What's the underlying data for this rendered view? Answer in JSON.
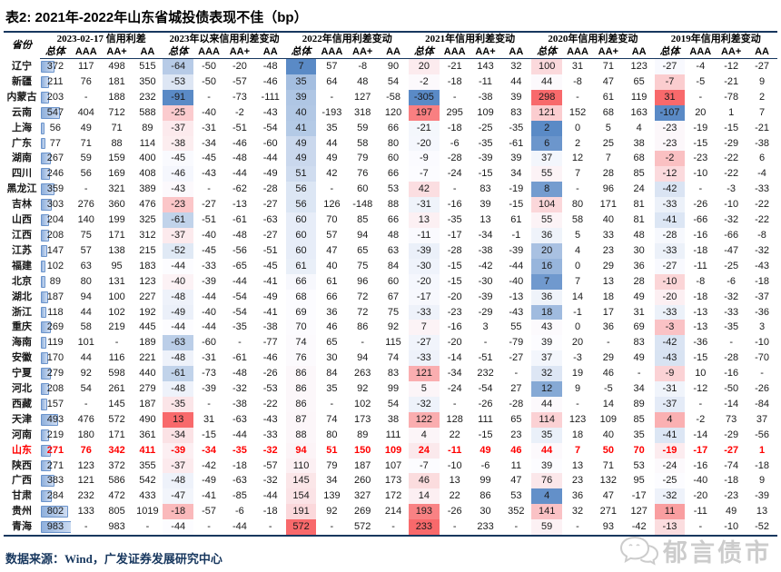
{
  "title": "表2:  2021年-2022年山东省城投债表现不佳（bp）",
  "source": "数据来源：Wind，广发证券发展研究中心",
  "watermark": {
    "text": "郁言债市",
    "icon": "chat-bubbles-logo"
  },
  "colors": {
    "accent_line": "#17375E",
    "highlight_text": "#FF0000",
    "bar_border": "#6A93CB",
    "bar_fill": "#8FB0DC",
    "scale_min_blue": "#5A8AC6",
    "scale_mid_white": "#FCFCFF",
    "scale_max_red": "#F8696B"
  },
  "table": {
    "province_header": "省份",
    "sub_headers": [
      "总体",
      "AAA",
      "AA+",
      "AA"
    ],
    "groups": [
      "2023-02-17 信用利差",
      "2023年以来信用利差变动",
      "2022年信用利差变动",
      "2021年信用利差变动",
      "2020年信用利差变动",
      "2019年信用利差变动"
    ],
    "databar_column": 0,
    "colorscale_columns": [
      4,
      8,
      12,
      16,
      20
    ],
    "rows": [
      {
        "province": "辽宁",
        "hl": false,
        "values": [
          372,
          117,
          498,
          515,
          -64,
          -50,
          -20,
          -48,
          7,
          57,
          -8,
          90,
          20,
          -21,
          143,
          32,
          100,
          31,
          71,
          123,
          -27,
          -4,
          -12,
          -27
        ]
      },
      {
        "province": "新疆",
        "hl": false,
        "values": [
          211,
          76,
          181,
          350,
          -53,
          -50,
          -57,
          -46,
          35,
          64,
          48,
          54,
          -2,
          -18,
          -11,
          44,
          44,
          -8,
          47,
          65,
          -7,
          -5,
          -21,
          9
        ]
      },
      {
        "province": "内蒙古",
        "hl": false,
        "values": [
          203,
          "-",
          188,
          232,
          -91,
          "-",
          -73,
          -111,
          39,
          "-",
          127,
          -58,
          -305,
          "-",
          -38,
          39,
          298,
          "-",
          61,
          119,
          31,
          "-",
          -78,
          2
        ]
      },
      {
        "province": "云南",
        "hl": false,
        "values": [
          547,
          404,
          712,
          588,
          -25,
          -40,
          -2,
          -43,
          40,
          -193,
          318,
          120,
          197,
          295,
          109,
          83,
          121,
          152,
          68,
          163,
          -107,
          20,
          1,
          7
        ]
      },
      {
        "province": "上海",
        "hl": false,
        "values": [
          56,
          49,
          71,
          89,
          -37,
          -31,
          -51,
          -54,
          41,
          35,
          59,
          66,
          -21,
          -18,
          -25,
          -35,
          2,
          0,
          5,
          4,
          -23,
          -19,
          -15,
          -21
        ]
      },
      {
        "province": "广东",
        "hl": false,
        "values": [
          77,
          71,
          88,
          114,
          -38,
          -34,
          -46,
          -60,
          49,
          44,
          58,
          80,
          -20,
          -6,
          -35,
          -61,
          6,
          2,
          25,
          38,
          -23,
          -15,
          -29,
          -38
        ]
      },
      {
        "province": "湖南",
        "hl": false,
        "values": [
          267,
          59,
          159,
          400,
          -45,
          -45,
          -48,
          -44,
          49,
          49,
          79,
          60,
          -9,
          -28,
          -39,
          39,
          37,
          12,
          7,
          68,
          -2,
          -23,
          -22,
          6
        ]
      },
      {
        "province": "四川",
        "hl": false,
        "values": [
          246,
          56,
          169,
          408,
          -46,
          -43,
          -44,
          -49,
          51,
          42,
          76,
          66,
          -7,
          -24,
          -15,
          34,
          55,
          7,
          28,
          85,
          -12,
          -10,
          -22,
          -4
        ]
      },
      {
        "province": "黑龙江",
        "hl": false,
        "values": [
          359,
          "-",
          321,
          389,
          -43,
          "-",
          -62,
          -28,
          56,
          "-",
          60,
          53,
          42,
          "-",
          83,
          -19,
          8,
          "-",
          96,
          24,
          -42,
          "-",
          -3,
          -33
        ]
      },
      {
        "province": "吉林",
        "hl": false,
        "values": [
          303,
          276,
          360,
          476,
          -23,
          -27,
          -13,
          -27,
          56,
          126,
          -148,
          88,
          -31,
          -16,
          39,
          -15,
          104,
          80,
          171,
          81,
          -33,
          -26,
          -10,
          -22
        ]
      },
      {
        "province": "山西",
        "hl": false,
        "values": [
          204,
          140,
          199,
          325,
          -61,
          -51,
          -61,
          -63,
          60,
          70,
          85,
          66,
          13,
          -35,
          13,
          61,
          55,
          58,
          40,
          81,
          -41,
          -66,
          -32,
          -22
        ]
      },
      {
        "province": "江西",
        "hl": false,
        "values": [
          208,
          75,
          171,
          312,
          -37,
          -40,
          -48,
          -27,
          60,
          57,
          94,
          48,
          -11,
          -17,
          -34,
          -1,
          36,
          5,
          33,
          48,
          -28,
          -16,
          -66,
          -8
        ]
      },
      {
        "province": "江苏",
        "hl": false,
        "values": [
          147,
          57,
          138,
          215,
          -52,
          -45,
          -56,
          -51,
          60,
          47,
          65,
          63,
          -39,
          -28,
          -38,
          -39,
          20,
          4,
          23,
          30,
          -33,
          -18,
          -47,
          -32
        ]
      },
      {
        "province": "福建",
        "hl": false,
        "values": [
          102,
          63,
          95,
          183,
          -44,
          -33,
          -65,
          -45,
          61,
          40,
          75,
          84,
          -30,
          -15,
          -42,
          -44,
          16,
          0,
          29,
          36,
          -27,
          -11,
          -25,
          -43
        ]
      },
      {
        "province": "北京",
        "hl": false,
        "values": [
          89,
          80,
          131,
          123,
          -40,
          -39,
          -44,
          -41,
          66,
          61,
          96,
          60,
          -20,
          -15,
          -30,
          -40,
          7,
          7,
          13,
          28,
          -10,
          -8,
          -6,
          -18
        ]
      },
      {
        "province": "湖北",
        "hl": false,
        "values": [
          187,
          94,
          100,
          227,
          -48,
          -44,
          -54,
          -49,
          68,
          66,
          72,
          67,
          -17,
          -20,
          -39,
          -13,
          36,
          14,
          18,
          49,
          -20,
          -18,
          -32,
          -37
        ]
      },
      {
        "province": "浙江",
        "hl": false,
        "values": [
          118,
          44,
          102,
          192,
          -49,
          -40,
          -54,
          -41,
          69,
          36,
          72,
          75,
          -33,
          -23,
          -29,
          -43,
          18,
          -1,
          17,
          31,
          -33,
          -13,
          -33,
          -36
        ]
      },
      {
        "province": "重庆",
        "hl": false,
        "values": [
          269,
          58,
          219,
          445,
          -44,
          -44,
          -35,
          -38,
          70,
          46,
          86,
          92,
          7,
          -16,
          3,
          55,
          43,
          0,
          36,
          69,
          -3,
          -13,
          -35,
          3
        ]
      },
      {
        "province": "海南",
        "hl": false,
        "values": [
          119,
          101,
          "-",
          189,
          -63,
          -60,
          "-",
          -77,
          74,
          65,
          "-",
          115,
          -27,
          -20,
          "-",
          -79,
          39,
          20,
          "-",
          83,
          -42,
          -36,
          "-",
          -10
        ]
      },
      {
        "province": "安徽",
        "hl": false,
        "values": [
          170,
          44,
          116,
          221,
          -48,
          -31,
          -61,
          -46,
          76,
          30,
          94,
          74,
          -33,
          -14,
          -51,
          -27,
          37,
          -3,
          29,
          49,
          -43,
          -15,
          -28,
          -70
        ]
      },
      {
        "province": "宁夏",
        "hl": false,
        "values": [
          279,
          92,
          598,
          440,
          -61,
          -73,
          -48,
          -26,
          86,
          84,
          263,
          83,
          121,
          -34,
          232,
          "-",
          32,
          19,
          46,
          "-",
          -9,
          10,
          -16,
          "-"
        ]
      },
      {
        "province": "河北",
        "hl": false,
        "values": [
          208,
          54,
          261,
          279,
          -48,
          -39,
          -32,
          -53,
          86,
          35,
          92,
          99,
          5,
          -24,
          -54,
          27,
          12,
          9,
          -5,
          34,
          -31,
          -12,
          -50,
          -26
        ]
      },
      {
        "province": "西藏",
        "hl": false,
        "values": [
          157,
          "-",
          145,
          187,
          -35,
          "-",
          -38,
          -22,
          86,
          "-",
          102,
          54,
          -32,
          "-",
          -26,
          -28,
          44,
          "-",
          14,
          89,
          -37,
          "-",
          -14,
          -84
        ]
      },
      {
        "province": "天津",
        "hl": false,
        "values": [
          493,
          476,
          572,
          490,
          13,
          31,
          -63,
          -43,
          87,
          74,
          173,
          38,
          122,
          128,
          111,
          65,
          114,
          123,
          109,
          85,
          4,
          -2,
          73,
          37
        ]
      },
      {
        "province": "河南",
        "hl": false,
        "values": [
          219,
          180,
          171,
          361,
          -34,
          -15,
          -44,
          -33,
          88,
          80,
          89,
          111,
          4,
          22,
          -15,
          23,
          35,
          18,
          40,
          35,
          -41,
          -14,
          -29,
          -56
        ]
      },
      {
        "province": "山东",
        "hl": true,
        "values": [
          271,
          76,
          342,
          411,
          -39,
          -34,
          -35,
          -32,
          94,
          51,
          150,
          109,
          24,
          -11,
          49,
          46,
          44,
          7,
          50,
          70,
          -19,
          -17,
          -27,
          1
        ]
      },
      {
        "province": "陕西",
        "hl": false,
        "values": [
          271,
          123,
          372,
          355,
          -37,
          -42,
          -18,
          -57,
          110,
          79,
          187,
          107,
          -7,
          -10,
          -6,
          11,
          39,
          13,
          71,
          53,
          -24,
          -16,
          -74,
          -18
        ]
      },
      {
        "province": "广西",
        "hl": false,
        "values": [
          383,
          121,
          586,
          542,
          -48,
          -49,
          -63,
          -32,
          145,
          34,
          260,
          173,
          46,
          13,
          99,
          47,
          76,
          23,
          132,
          95,
          -25,
          -40,
          -18,
          9
        ]
      },
      {
        "province": "甘肃",
        "hl": false,
        "values": [
          284,
          232,
          472,
          433,
          -47,
          -41,
          -85,
          -44,
          154,
          139,
          327,
          172,
          14,
          22,
          86,
          53,
          4,
          36,
          47,
          -17,
          -32,
          -20,
          -23,
          -39
        ]
      },
      {
        "province": "贵州",
        "hl": false,
        "values": [
          802,
          133,
          805,
          1019,
          -18,
          -57,
          -6,
          -18,
          191,
          92,
          269,
          214,
          193,
          -26,
          30,
          352,
          141,
          32,
          271,
          127,
          11,
          -11,
          49,
          13
        ]
      },
      {
        "province": "青海",
        "hl": false,
        "values": [
          983,
          "-",
          983,
          "-",
          -44,
          "-",
          -44,
          "-",
          572,
          "-",
          572,
          "-",
          233,
          "-",
          233,
          "-",
          59,
          "-",
          93,
          -42,
          -13,
          "-",
          -10,
          -52
        ]
      }
    ]
  }
}
